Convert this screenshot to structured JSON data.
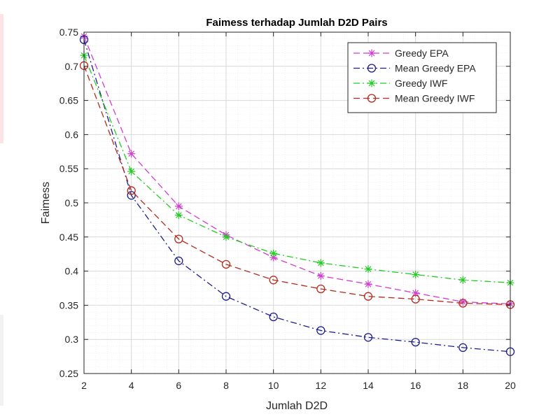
{
  "chart_data": {
    "type": "line",
    "title": "Faimess terhadap Jumlah D2D Pairs",
    "xlabel": "Jumlah D2D",
    "ylabel": "Faimess",
    "xlim": [
      2,
      20
    ],
    "ylim": [
      0.25,
      0.75
    ],
    "x": [
      2,
      4,
      6,
      8,
      10,
      12,
      14,
      16,
      18,
      20
    ],
    "xticks": [
      "2",
      "4",
      "6",
      "8",
      "10",
      "12",
      "14",
      "16",
      "18",
      "20"
    ],
    "yticks": [
      0.25,
      0.3,
      0.35,
      0.4,
      0.45,
      0.5,
      0.55,
      0.6,
      0.65,
      0.7,
      0.75
    ],
    "ytick_labels": [
      "0.25",
      "0.3",
      "0.35",
      "0.4",
      "0.45",
      "0.5",
      "0.55",
      "0.6",
      "0.65",
      "0.7",
      "0.75"
    ],
    "grid": true,
    "minor_grid": true,
    "legend_position": "top-right",
    "series": [
      {
        "name": "Greedy EPA",
        "color": "#d23cd2",
        "marker": "star",
        "dash": "dashed",
        "values": [
          0.744,
          0.572,
          0.495,
          0.453,
          0.42,
          0.393,
          0.381,
          0.368,
          0.355,
          0.352
        ]
      },
      {
        "name": "Mean Greedy EPA",
        "color": "#1c1c8c",
        "marker": "circle",
        "dash": "dashdot",
        "values": [
          0.739,
          0.511,
          0.415,
          0.363,
          0.333,
          0.313,
          0.303,
          0.296,
          0.288,
          0.282
        ]
      },
      {
        "name": "Greedy IWF",
        "color": "#22cc22",
        "marker": "star",
        "dash": "dashdot",
        "values": [
          0.716,
          0.546,
          0.482,
          0.45,
          0.426,
          0.412,
          0.403,
          0.395,
          0.387,
          0.383
        ]
      },
      {
        "name": "Mean Greedy IWF",
        "color": "#b52a1d",
        "marker": "circle",
        "dash": "dashed",
        "values": [
          0.701,
          0.518,
          0.447,
          0.41,
          0.387,
          0.374,
          0.363,
          0.359,
          0.353,
          0.351
        ]
      }
    ]
  }
}
